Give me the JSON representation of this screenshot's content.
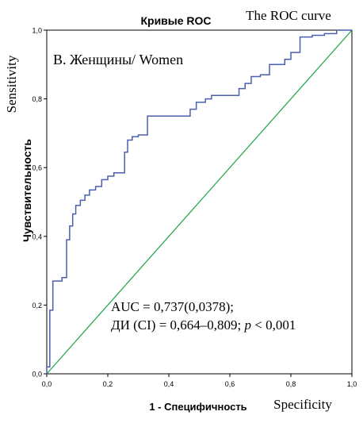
{
  "chart_data": {
    "type": "line",
    "title": "Кривые ROC",
    "title_en": "The ROC curve",
    "panel_label": "B. Женщины/ Women",
    "xlabel": "1 - Специфичность",
    "xlabel_en": "Specificity",
    "ylabel": "Чувствительность",
    "ylabel_en": "Sensitivity",
    "xlim": [
      0,
      1
    ],
    "ylim": [
      0,
      1
    ],
    "x_ticks": [
      "0,0",
      "0,2",
      "0,4",
      "0,6",
      "0,8",
      "1,0"
    ],
    "y_ticks": [
      "0,0",
      "0,2",
      "0,4",
      "0,6",
      "0,8",
      "1,0"
    ],
    "annotation_line1": "AUC = 0,737(0,0378);",
    "annotation_line2_prefix": "ДИ (CI) = 0,664–0,809; ",
    "annotation_line2_p": "p",
    "annotation_line2_suffix": " < 0,001",
    "colors": {
      "roc": "#4a5fae",
      "reference": "#2aa84a",
      "frame": "#000000"
    },
    "series": [
      {
        "type": "step",
        "x": [
          0,
          0,
          0.01,
          0.01,
          0.02,
          0.02,
          0.05,
          0.05,
          0.065,
          0.065,
          0.075,
          0.075,
          0.085,
          0.085,
          0.095,
          0.095,
          0.11,
          0.11,
          0.125,
          0.125,
          0.14,
          0.14,
          0.16,
          0.16,
          0.18,
          0.18,
          0.2,
          0.2,
          0.22,
          0.22,
          0.255,
          0.255,
          0.265,
          0.265,
          0.28,
          0.28,
          0.3,
          0.3,
          0.33,
          0.33,
          0.47,
          0.47,
          0.49,
          0.49,
          0.52,
          0.52,
          0.54,
          0.54,
          0.63,
          0.63,
          0.65,
          0.65,
          0.67,
          0.67,
          0.7,
          0.7,
          0.73,
          0.73,
          0.78,
          0.78,
          0.8,
          0.8,
          0.83,
          0.83,
          0.87,
          0.87,
          0.91,
          0.91,
          0.95,
          0.95,
          0.97,
          0.97,
          1
        ],
        "y": [
          0,
          0.02,
          0.02,
          0.185,
          0.185,
          0.27,
          0.27,
          0.28,
          0.28,
          0.39,
          0.39,
          0.43,
          0.43,
          0.465,
          0.465,
          0.49,
          0.49,
          0.505,
          0.505,
          0.52,
          0.52,
          0.535,
          0.535,
          0.545,
          0.545,
          0.565,
          0.565,
          0.575,
          0.575,
          0.585,
          0.585,
          0.645,
          0.645,
          0.68,
          0.68,
          0.69,
          0.69,
          0.695,
          0.695,
          0.75,
          0.75,
          0.77,
          0.77,
          0.79,
          0.79,
          0.8,
          0.8,
          0.81,
          0.81,
          0.83,
          0.83,
          0.845,
          0.845,
          0.865,
          0.865,
          0.87,
          0.87,
          0.9,
          0.9,
          0.915,
          0.915,
          0.935,
          0.935,
          0.98,
          0.98,
          0.985,
          0.985,
          0.99,
          0.99,
          1,
          1,
          1,
          1
        ]
      },
      {
        "type": "reference",
        "x": [
          0,
          1
        ],
        "y": [
          0,
          1
        ]
      }
    ]
  }
}
